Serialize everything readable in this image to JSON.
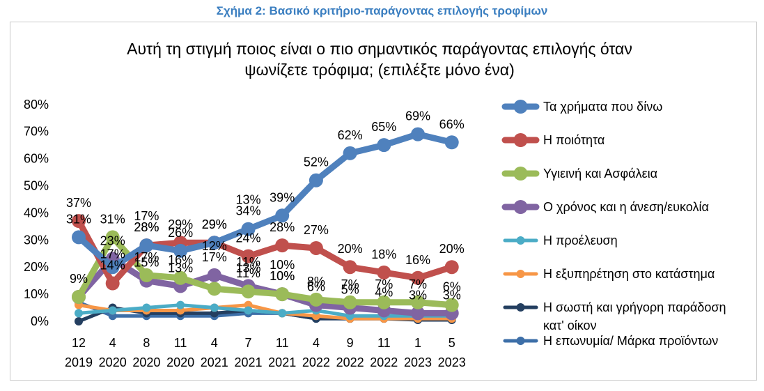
{
  "figure_caption": "Σχήμα 2: Βασικό κριτήριο-παράγοντας επιλογής τροφίμων",
  "chart_data": {
    "type": "line",
    "title_lines": [
      "Αυτή τη στιγμή ποιος είναι ο πιο σημαντικός παράγοντας επιλογής όταν",
      "ψωνίζετε τρόφιμα; (επιλέξτε μόνο ένα)"
    ],
    "categories": [
      {
        "month": "12",
        "year": "2019"
      },
      {
        "month": "4",
        "year": "2020"
      },
      {
        "month": "8",
        "year": "2020"
      },
      {
        "month": "11",
        "year": "2020"
      },
      {
        "month": "4",
        "year": "2021"
      },
      {
        "month": "7",
        "year": "2021"
      },
      {
        "month": "11",
        "year": "2021"
      },
      {
        "month": "4",
        "year": "2022"
      },
      {
        "month": "9",
        "year": "2022"
      },
      {
        "month": "11",
        "year": "2022"
      },
      {
        "month": "1",
        "year": "2023"
      },
      {
        "month": "5",
        "year": "2023"
      }
    ],
    "y_ticks": [
      "0%",
      "10%",
      "20%",
      "30%",
      "40%",
      "50%",
      "60%",
      "70%",
      "80%"
    ],
    "ylim": [
      0,
      80
    ],
    "grid": false,
    "legend_position": "right",
    "series": [
      {
        "name": "Τα χρήματα που δίνω",
        "color": "#4f81bd",
        "values": [
          31,
          20,
          28,
          26,
          29,
          34,
          39,
          52,
          62,
          65,
          69,
          66
        ],
        "labels": [
          "31%",
          "",
          "28%",
          "26%",
          "29%",
          "34%",
          "39%",
          "52%",
          "62%",
          "65%",
          "69%",
          "66%"
        ]
      },
      {
        "name": "Η ποιότητα",
        "color": "#c0504d",
        "values": [
          37,
          14,
          28,
          29,
          29,
          24,
          28,
          27,
          20,
          18,
          16,
          20
        ],
        "labels": [
          "37%",
          "14%",
          "28%",
          "29%",
          "29%",
          "24%",
          "28%",
          "27%",
          "20%",
          "18%",
          "16%",
          "20%"
        ]
      },
      {
        "name": "Υγιεινή και Ασφάλεια",
        "color": "#9bbb59",
        "values": [
          9,
          31,
          17,
          16,
          12,
          11,
          10,
          8,
          7,
          7,
          7,
          6
        ],
        "labels": [
          "9%",
          "31%",
          "17%",
          "16%",
          "",
          "11%",
          "10%",
          "8%",
          "7%",
          "7%",
          "7%",
          "6%"
        ]
      },
      {
        "name": "Ο χρόνος και η άνεση/ευκολία",
        "color": "#8064a2",
        "values": [
          9,
          23,
          15,
          13,
          17,
          13,
          10,
          6,
          5,
          4,
          3,
          3
        ],
        "labels": [
          "",
          "23%",
          "15%",
          "13%",
          "17%",
          "13%",
          "10%",
          "6%",
          "5%",
          "4%",
          "3%",
          "3%"
        ]
      },
      {
        "name": "Η προέλευση",
        "color": "#4bacc6",
        "values": [
          3,
          4,
          5,
          6,
          5,
          4,
          3,
          4,
          2,
          2,
          2,
          2
        ],
        "labels": []
      },
      {
        "name": "Η εξυπηρέτηση στο κατάστημα",
        "color": "#f79646",
        "values": [
          6,
          4,
          4,
          4,
          5,
          6,
          3,
          2,
          1,
          1,
          1,
          1
        ],
        "labels": []
      },
      {
        "name": "Η σωστή και γρήγορη παράδοση κατ' οίκον",
        "color": "#243f60",
        "values": [
          0,
          5,
          3,
          3,
          3,
          4,
          3,
          1,
          1,
          1,
          0.5,
          0.5
        ],
        "labels": []
      },
      {
        "name": "Η επωνυμία/ Μάρκα προϊόντων",
        "color": "#3d6fa8",
        "values": [
          7,
          2,
          2,
          2,
          2,
          3,
          3,
          1,
          1,
          1,
          1,
          1
        ],
        "labels": []
      }
    ],
    "extra_labels": [
      {
        "text": "17%",
        "series": 1,
        "index": 1
      },
      {
        "text": "17%",
        "series": 1,
        "index": 2
      },
      {
        "text": "10%",
        "series": 2,
        "index": 6
      },
      {
        "text": "12%",
        "series": 3,
        "index": 4
      },
      {
        "text": "13%",
        "series": 0,
        "index": 5
      },
      {
        "text": "11%",
        "series": 2,
        "index": 5
      }
    ],
    "legend_lines": [
      [
        "Τα χρήματα που δίνω"
      ],
      [
        "Η ποιότητα"
      ],
      [
        "Υγιεινή και Ασφάλεια"
      ],
      [
        "Ο χρόνος και η άνεση/ευκολία"
      ],
      [
        "Η προέλευση"
      ],
      [
        "Η εξυπηρέτηση στο κατάστημα"
      ],
      [
        "Η σωστή και γρήγορη παράδοση",
        "κατ' οίκον"
      ],
      [
        "Η επωνυμία/ Μάρκα προϊόντων"
      ]
    ]
  }
}
